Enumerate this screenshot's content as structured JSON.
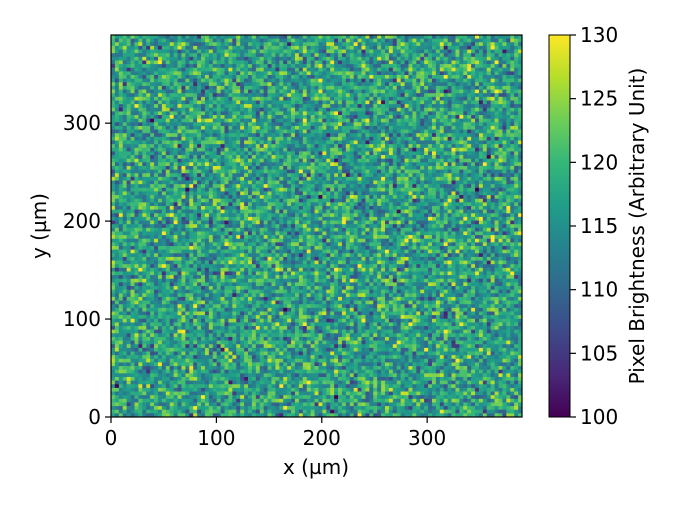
{
  "chart_data": {
    "type": "heatmap",
    "xlabel": "x (µm)",
    "ylabel": "y (µm)",
    "xlim": [
      0,
      390
    ],
    "ylim": [
      0,
      390
    ],
    "x_ticks": [
      0,
      100,
      200,
      300
    ],
    "y_ticks": [
      0,
      100,
      200,
      300
    ],
    "grid_cols": 105,
    "grid_rows": 105,
    "value_distribution": {
      "mean": 117,
      "std": 5,
      "min": 100,
      "max": 130
    },
    "colorbar": {
      "label": "Pixel Brightness (Arbitrary Unit)",
      "min": 100,
      "max": 130,
      "ticks": [
        100,
        105,
        110,
        115,
        120,
        125,
        130
      ],
      "colormap": "viridis",
      "colors": [
        "#440154",
        "#482878",
        "#3e4989",
        "#31688e",
        "#26828e",
        "#1f9e89",
        "#35b779",
        "#6ece58",
        "#b5de2b",
        "#fde725"
      ]
    },
    "grid": false
  }
}
